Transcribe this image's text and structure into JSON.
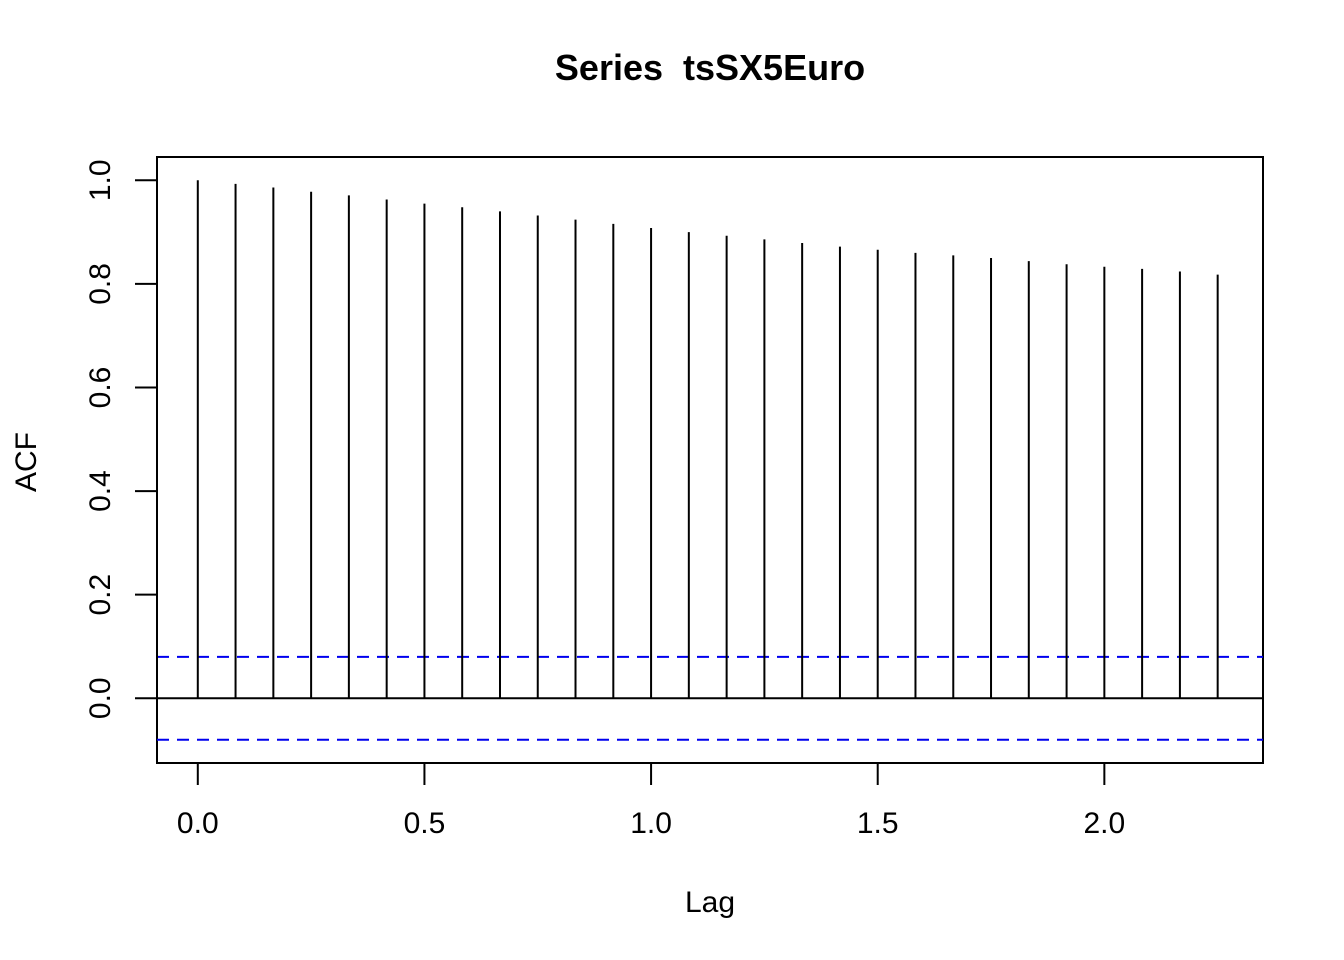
{
  "chart_data": {
    "type": "bar",
    "subtype": "acf-spikes",
    "title": "Series  tsSX5Euro",
    "xlabel": "Lag",
    "ylabel": "ACF",
    "xlim": [
      -0.09,
      2.35
    ],
    "ylim": [
      -0.125,
      1.045
    ],
    "x_ticks": [
      "0.0",
      "0.5",
      "1.0",
      "1.5",
      "2.0"
    ],
    "y_ticks": [
      "0.0",
      "0.2",
      "0.4",
      "0.6",
      "0.8",
      "1.0"
    ],
    "x": [
      0.0,
      0.0833,
      0.1667,
      0.25,
      0.3333,
      0.4167,
      0.5,
      0.5833,
      0.6667,
      0.75,
      0.8333,
      0.9167,
      1.0,
      1.0833,
      1.1667,
      1.25,
      1.3333,
      1.4167,
      1.5,
      1.5833,
      1.6667,
      1.75,
      1.8333,
      1.9167,
      2.0,
      2.0833,
      2.1667,
      2.25
    ],
    "values": [
      1.0,
      0.993,
      0.986,
      0.978,
      0.971,
      0.963,
      0.955,
      0.948,
      0.94,
      0.932,
      0.924,
      0.916,
      0.908,
      0.9,
      0.893,
      0.886,
      0.879,
      0.872,
      0.866,
      0.86,
      0.855,
      0.85,
      0.844,
      0.838,
      0.833,
      0.829,
      0.824,
      0.818
    ],
    "confidence_limits": [
      0.08,
      -0.08
    ],
    "confidence_color": "#0000ee",
    "spike_color": "#000000",
    "grid": false,
    "legend": "none"
  }
}
